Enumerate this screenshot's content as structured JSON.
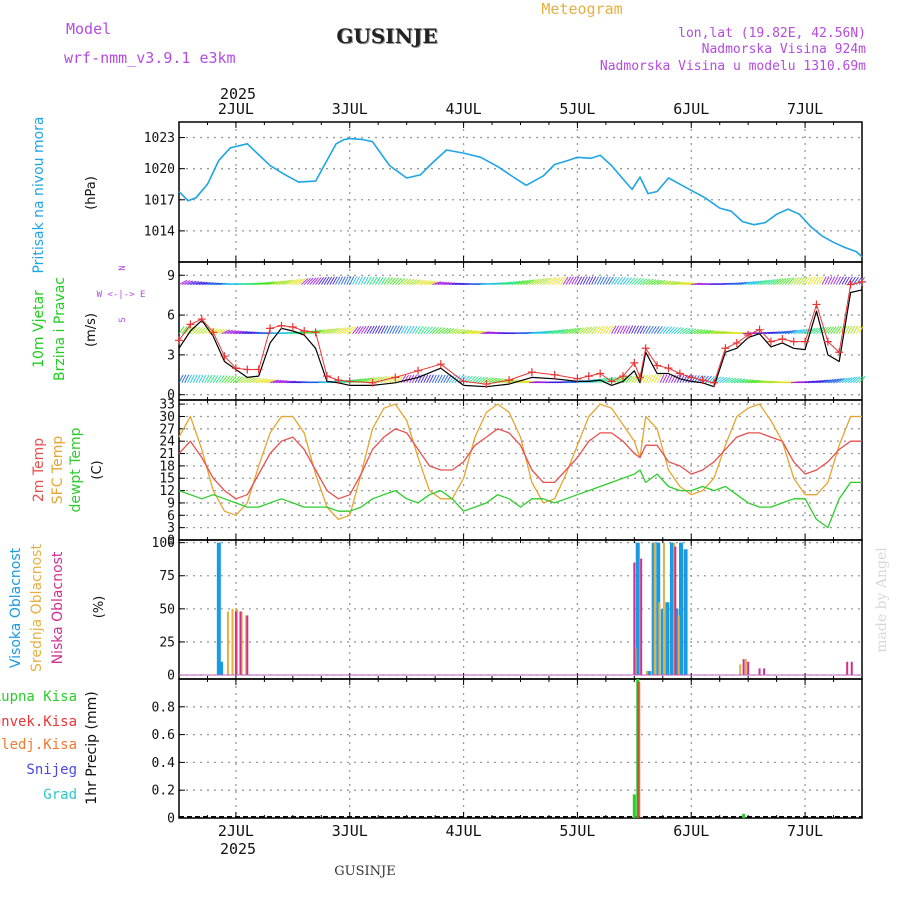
{
  "header": {
    "model_label": "Model",
    "model_name": "wrf-nmm_v3.9.1  e3km",
    "station": "GUSINJE",
    "product": "Meteogram",
    "coords": "lon,lat (19.82E, 42.56N)",
    "elevation": "Nadmorska Visina 924m",
    "model_elevation": "Nadmorska Visina u modelu 1310.69m",
    "year_top": "2025",
    "year_bottom": "2025",
    "footer_station": "GUSINJE",
    "watermark": "made by Angel"
  },
  "colors": {
    "pressure": "#1ea5e6",
    "wind_label": "#1fcf1f",
    "wind_speed_line": "#000000",
    "wind_gust": "#e83535",
    "compass": "#b44be0",
    "temp2m": "#e85050",
    "sfc_temp": "#e5a530",
    "dewpoint": "#2ccc2c",
    "cloud_high": "#1a9ae0",
    "cloud_mid": "#e5b040",
    "cloud_low": "#cf2f90",
    "precip_total": "#2ccc2c",
    "precip_conv": "#e83535",
    "precip_frozen": "#f07a30",
    "snow": "#4848e8",
    "hail": "#2cc8c8",
    "grid": "#9a9a9a"
  },
  "chart_data": [
    {
      "id": "pressure",
      "type": "line",
      "ylabel": "Pritisak na nivou mora",
      "unit": "(hPa)",
      "ylim": [
        1011,
        1024.5
      ],
      "yticks": [
        1014,
        1017,
        1020,
        1023
      ],
      "x": [
        1.5,
        1.58,
        1.65,
        1.75,
        1.85,
        1.95,
        2.1,
        2.3,
        2.42,
        2.55,
        2.7,
        2.88,
        2.95,
        3.0,
        3.12,
        3.2,
        3.35,
        3.5,
        3.62,
        3.72,
        3.85,
        4.0,
        4.15,
        4.3,
        4.45,
        4.55,
        4.7,
        4.8,
        4.92,
        5.0,
        5.12,
        5.2,
        5.3,
        5.4,
        5.48,
        5.55,
        5.62,
        5.7,
        5.8,
        5.9,
        6.0,
        6.12,
        6.25,
        6.35,
        6.45,
        6.55,
        6.65,
        6.75,
        6.85,
        6.95,
        7.05,
        7.15,
        7.25,
        7.35,
        7.45,
        7.5
      ],
      "series": [
        {
          "name": "Pritisak",
          "values": [
            1017.8,
            1016.9,
            1017.2,
            1018.5,
            1020.8,
            1022.0,
            1022.4,
            1020.3,
            1019.5,
            1018.7,
            1018.8,
            1022.4,
            1022.8,
            1022.9,
            1022.8,
            1022.6,
            1020.3,
            1019.1,
            1019.4,
            1020.5,
            1021.8,
            1021.5,
            1021.1,
            1020.2,
            1019.1,
            1018.4,
            1019.3,
            1020.4,
            1020.8,
            1021.1,
            1021.0,
            1021.3,
            1020.3,
            1019.0,
            1018.0,
            1019.2,
            1017.6,
            1017.8,
            1019.1,
            1018.5,
            1017.9,
            1017.2,
            1016.2,
            1015.9,
            1014.9,
            1014.6,
            1014.8,
            1015.6,
            1016.1,
            1015.6,
            1014.4,
            1013.5,
            1012.9,
            1012.4,
            1012.0,
            1011.5
          ]
        }
      ]
    },
    {
      "id": "wind",
      "type": "line",
      "ylabel1": "10m Vjetar",
      "ylabel2": "Brzina i Pravac",
      "unit": "(m/s)",
      "compass_text": "W <-|-> E",
      "compass_n": "N",
      "compass_s": "S",
      "ylim": [
        -0.4,
        10
      ],
      "yticks": [
        0,
        3,
        6,
        9
      ],
      "x": [
        1.5,
        1.6,
        1.7,
        1.8,
        1.9,
        2.0,
        2.1,
        2.2,
        2.3,
        2.4,
        2.5,
        2.6,
        2.7,
        2.8,
        2.9,
        3.0,
        3.2,
        3.4,
        3.6,
        3.8,
        4.0,
        4.2,
        4.4,
        4.6,
        4.8,
        5.0,
        5.1,
        5.2,
        5.3,
        5.4,
        5.5,
        5.55,
        5.6,
        5.7,
        5.8,
        5.9,
        6.0,
        6.1,
        6.2,
        6.3,
        6.4,
        6.5,
        6.6,
        6.7,
        6.8,
        6.9,
        7.0,
        7.1,
        7.2,
        7.3,
        7.4,
        7.5
      ],
      "series": [
        {
          "name": "Brzina",
          "values": [
            3.5,
            4.8,
            5.6,
            4.4,
            2.5,
            1.9,
            1.3,
            1.4,
            3.9,
            5.0,
            4.8,
            4.5,
            3.5,
            1.0,
            0.9,
            0.7,
            0.7,
            0.9,
            1.3,
            2.0,
            0.7,
            0.6,
            0.8,
            1.3,
            1.2,
            1.0,
            1.0,
            1.1,
            0.7,
            1.0,
            1.8,
            0.9,
            3.2,
            1.6,
            1.6,
            1.2,
            1.0,
            0.9,
            0.6,
            3.2,
            3.5,
            4.3,
            4.6,
            3.6,
            3.9,
            3.5,
            3.4,
            6.3,
            3.0,
            2.5,
            7.7,
            7.9
          ]
        },
        {
          "name": "Udari",
          "values": [
            4.1,
            5.3,
            5.7,
            4.7,
            2.9,
            2.0,
            1.9,
            1.9,
            5.0,
            5.2,
            5.1,
            4.8,
            4.7,
            1.4,
            1.1,
            1.0,
            0.9,
            1.3,
            1.8,
            2.3,
            1.0,
            0.8,
            1.1,
            1.7,
            1.5,
            1.2,
            1.4,
            1.6,
            1.0,
            1.4,
            2.4,
            1.3,
            3.5,
            2.2,
            2.0,
            1.6,
            1.3,
            1.1,
            0.9,
            3.5,
            3.9,
            4.5,
            4.9,
            4.0,
            4.2,
            4.0,
            4.0,
            6.8,
            4.0,
            3.2,
            8.3,
            8.5
          ]
        }
      ]
    },
    {
      "id": "temperature",
      "type": "line",
      "ylabel1": "2m Temp",
      "ylabel2": "SFC Temp",
      "ylabel3": "dewpt Temp",
      "unit": "(C)",
      "ylim": [
        0,
        34
      ],
      "yticks": [
        0,
        3,
        6,
        9,
        12,
        15,
        18,
        21,
        24,
        27,
        30,
        33
      ],
      "x": [
        1.5,
        1.6,
        1.7,
        1.8,
        1.9,
        2.0,
        2.1,
        2.2,
        2.3,
        2.4,
        2.5,
        2.6,
        2.7,
        2.8,
        2.9,
        3.0,
        3.1,
        3.2,
        3.3,
        3.4,
        3.5,
        3.6,
        3.7,
        3.8,
        3.9,
        4.0,
        4.1,
        4.2,
        4.3,
        4.4,
        4.5,
        4.6,
        4.7,
        4.8,
        4.9,
        5.0,
        5.1,
        5.2,
        5.3,
        5.4,
        5.5,
        5.55,
        5.6,
        5.7,
        5.8,
        5.9,
        6.0,
        6.1,
        6.2,
        6.3,
        6.4,
        6.5,
        6.6,
        6.7,
        6.8,
        6.9,
        7.0,
        7.1,
        7.2,
        7.3,
        7.4,
        7.5
      ],
      "series": [
        {
          "name": "2m Temp",
          "values": [
            21,
            24,
            20,
            15,
            12,
            10,
            11,
            16,
            21,
            24,
            25,
            22,
            17,
            12,
            10,
            11,
            16,
            22,
            25,
            27,
            26,
            22,
            18,
            17,
            17,
            19,
            23,
            25,
            27,
            26,
            23,
            17,
            14,
            14,
            17,
            20,
            24,
            26,
            26,
            24,
            21,
            20,
            23,
            23,
            19,
            18,
            16,
            17,
            19,
            22,
            25,
            26,
            26,
            25,
            24,
            19,
            16,
            17,
            19,
            22,
            24,
            24
          ]
        },
        {
          "name": "SFC Temp",
          "values": [
            25,
            30,
            22,
            12,
            7,
            6,
            9,
            18,
            26,
            30,
            30,
            26,
            16,
            8,
            5,
            6,
            16,
            27,
            32,
            33,
            29,
            20,
            12,
            10,
            10,
            15,
            25,
            31,
            33,
            31,
            25,
            14,
            9,
            10,
            16,
            23,
            30,
            33,
            32,
            28,
            24,
            20,
            30,
            27,
            17,
            13,
            11,
            12,
            15,
            23,
            30,
            32,
            33,
            29,
            24,
            15,
            11,
            11,
            14,
            23,
            30,
            30
          ]
        },
        {
          "name": "dewpt Temp",
          "values": [
            12,
            11,
            10,
            11,
            10,
            9,
            8,
            8,
            9,
            10,
            9,
            8,
            8,
            8,
            7,
            7,
            8,
            10,
            11,
            12,
            10,
            9,
            11,
            12,
            10,
            7,
            8,
            9,
            11,
            10,
            8,
            10,
            10,
            9,
            10,
            11,
            12,
            13,
            14,
            15,
            16,
            17,
            14,
            16,
            13,
            12,
            12,
            13,
            12,
            13,
            11,
            9,
            8,
            8,
            9,
            10,
            10,
            5,
            3,
            10,
            14,
            14
          ]
        }
      ]
    },
    {
      "id": "clouds",
      "type": "bar",
      "ylabel1": "Visoka Oblacnost",
      "ylabel2": "Srednja Oblacnost",
      "ylabel3": "Niska Oblacnost",
      "unit": "(%)",
      "ylim": [
        -3,
        102
      ],
      "yticks": [
        0,
        25,
        50,
        75,
        100
      ],
      "series": [
        {
          "name": "Visoka",
          "x": [
            1.85,
            1.87,
            5.53,
            5.63,
            5.67,
            5.71,
            5.75,
            5.79,
            5.83,
            5.87,
            5.91,
            5.95
          ],
          "values": [
            100,
            10,
            100,
            3,
            100,
            100,
            50,
            55,
            100,
            50,
            100,
            95
          ]
        },
        {
          "name": "Srednja",
          "x": [
            1.93,
            1.97,
            2.01,
            2.05,
            2.09,
            5.51,
            5.61,
            5.68,
            5.72,
            5.76,
            5.85,
            5.89,
            6.43,
            6.48
          ],
          "values": [
            48,
            50,
            50,
            48,
            45,
            20,
            3,
            100,
            55,
            100,
            100,
            45,
            8,
            12
          ]
        },
        {
          "name": "Niska",
          "x": [
            2.0,
            2.04,
            2.1,
            5.5,
            5.56,
            5.86,
            6.46,
            6.5,
            6.6,
            6.64,
            7.37,
            7.41
          ],
          "values": [
            48,
            48,
            45,
            85,
            88,
            97,
            12,
            10,
            5,
            5,
            10,
            10
          ]
        }
      ]
    },
    {
      "id": "precip",
      "type": "bar",
      "ylabel": "1hr Precip (mm)",
      "ylim": [
        0,
        1.0
      ],
      "yticks": [
        0,
        0.2,
        0.4,
        0.6,
        0.8
      ],
      "legend": [
        "Ukupna  Kisa",
        "Konvek.Kisa",
        "Zaledj.Kisa",
        "Snijeg",
        "Grad"
      ],
      "series": [
        {
          "name": "Ukupna Kisa",
          "x": [
            5.5,
            5.53,
            6.46
          ],
          "values": [
            0.17,
            1.0,
            0.03
          ]
        },
        {
          "name": "Konvek.Kisa",
          "x": [
            5.53
          ],
          "values": [
            0.98
          ]
        }
      ]
    }
  ],
  "axis": {
    "x_min": 1.5,
    "x_max": 7.5,
    "days": [
      {
        "x": 2,
        "label": "2JUL"
      },
      {
        "x": 3,
        "label": "3JUL"
      },
      {
        "x": 4,
        "label": "4JUL"
      },
      {
        "x": 5,
        "label": "5JUL"
      },
      {
        "x": 6,
        "label": "6JUL"
      },
      {
        "x": 7,
        "label": "7JUL"
      }
    ]
  }
}
